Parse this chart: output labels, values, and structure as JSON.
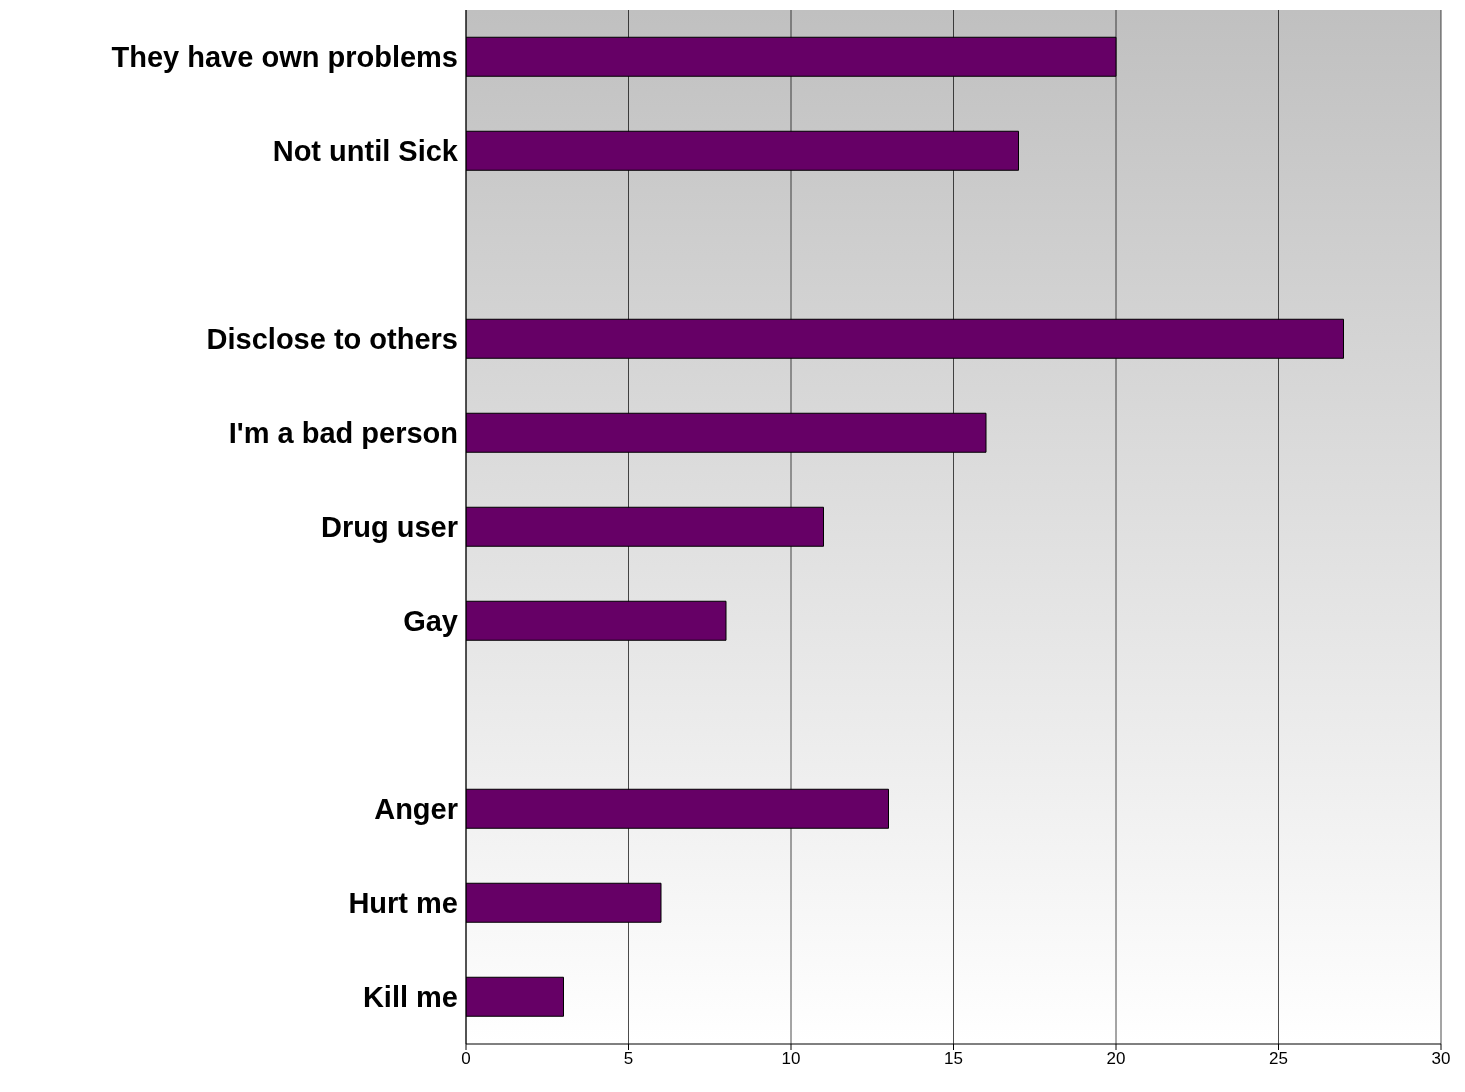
{
  "chart_data": {
    "type": "bar",
    "orientation": "horizontal",
    "categories": [
      "They have own problems",
      "Not until Sick",
      null,
      "Disclose to others",
      "I'm a bad person",
      "Drug user",
      "Gay",
      null,
      "Anger",
      "Hurt me",
      "Kill me"
    ],
    "values": [
      20,
      17,
      null,
      27,
      16,
      11,
      8,
      null,
      13,
      6,
      3
    ],
    "color": "#660066",
    "xlim": [
      0,
      30
    ],
    "xticks": [
      0,
      5,
      10,
      15,
      20,
      25,
      30
    ],
    "grid": "x"
  }
}
